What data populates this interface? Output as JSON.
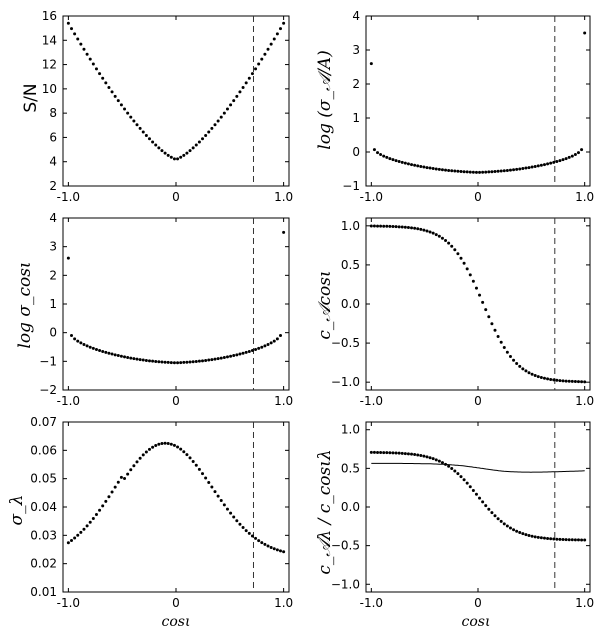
{
  "chart_data": [
    {
      "id": "sn",
      "type": "scatter",
      "ylabel_text": "S/N",
      "xlim": [
        -1.05,
        1.05
      ],
      "ylim": [
        2,
        16
      ],
      "xticks": [
        "-1.0",
        "0",
        "1.0"
      ],
      "xtick_values": [
        -1.0,
        0,
        1.0
      ],
      "yticks": [
        "2",
        "4",
        "6",
        "8",
        "10",
        "12",
        "14",
        "16"
      ],
      "ytick_values": [
        2,
        4,
        6,
        8,
        10,
        12,
        14,
        16
      ],
      "vline_x": 0.72,
      "dots": {
        "fn": "sn"
      }
    },
    {
      "id": "logsigA",
      "type": "scatter",
      "ylabel_text": "log (σ_𝒜/A)",
      "xlim": [
        -1.05,
        1.05
      ],
      "ylim": [
        -1,
        4
      ],
      "xticks": [
        "-1.0",
        "0",
        "1.0"
      ],
      "xtick_values": [
        -1.0,
        0,
        1.0
      ],
      "yticks": [
        "−1",
        "0",
        "1",
        "2",
        "3",
        "4"
      ],
      "ytick_values": [
        -1,
        0,
        1,
        2,
        3,
        4
      ],
      "vline_x": 0.72,
      "dots": {
        "fn": "logsigA"
      }
    },
    {
      "id": "logsigcos",
      "type": "scatter",
      "ylabel_text": "log σ_cosι",
      "xlim": [
        -1.05,
        1.05
      ],
      "ylim": [
        -2,
        4
      ],
      "xticks": [
        "-1.0",
        "0",
        "1.0"
      ],
      "xtick_values": [
        -1.0,
        0,
        1.0
      ],
      "yticks": [
        "−2",
        "−1",
        "0",
        "1",
        "2",
        "3",
        "4"
      ],
      "ytick_values": [
        -2,
        -1,
        0,
        1,
        2,
        3,
        4
      ],
      "vline_x": 0.72,
      "dots": {
        "fn": "logsigcos"
      }
    },
    {
      "id": "cAcos",
      "type": "scatter",
      "ylabel_text": "c_𝒜cosι",
      "xlim": [
        -1.05,
        1.05
      ],
      "ylim": [
        -1.1,
        1.1
      ],
      "xticks": [
        "-1.0",
        "0",
        "1.0"
      ],
      "xtick_values": [
        -1.0,
        0,
        1.0
      ],
      "yticks": [
        "−1.0",
        "−0.5",
        "0.0",
        "0.5",
        "1.0"
      ],
      "ytick_values": [
        -1.0,
        -0.5,
        0.0,
        0.5,
        1.0
      ],
      "vline_x": 0.72,
      "dots": {
        "fn": "cAcos"
      }
    },
    {
      "id": "siglam",
      "type": "scatter",
      "ylabel_text": "σ_λ",
      "xlabel_text": "cosι",
      "xlim": [
        -1.05,
        1.05
      ],
      "ylim": [
        0.01,
        0.07
      ],
      "xticks": [
        "-1.0",
        "0",
        "1.0"
      ],
      "xtick_values": [
        -1.0,
        0,
        1.0
      ],
      "yticks": [
        "0.01",
        "0.02",
        "0.03",
        "0.04",
        "0.05",
        "0.06",
        "0.07"
      ],
      "ytick_values": [
        0.01,
        0.02,
        0.03,
        0.04,
        0.05,
        0.06,
        0.07
      ],
      "vline_x": 0.72,
      "dots": {
        "fn": "siglam"
      }
    },
    {
      "id": "ratio",
      "type": "scatter",
      "ylabel_text": "c_𝒜λ / c_cosιλ",
      "xlabel_text": "cosι",
      "xlim": [
        -1.05,
        1.05
      ],
      "ylim": [
        -1.1,
        1.1
      ],
      "xticks": [
        "-1.0",
        "0",
        "1.0"
      ],
      "xtick_values": [
        -1.0,
        0,
        1.0
      ],
      "yticks": [
        "−1.0",
        "−0.5",
        "0.0",
        "0.5",
        "1.0"
      ],
      "ytick_values": [
        -1.0,
        -0.5,
        0.0,
        0.5,
        1.0
      ],
      "vline_x": 0.72,
      "dots": {
        "fn": "ratio_dots"
      },
      "line": {
        "fn": "ratio_line"
      }
    }
  ]
}
